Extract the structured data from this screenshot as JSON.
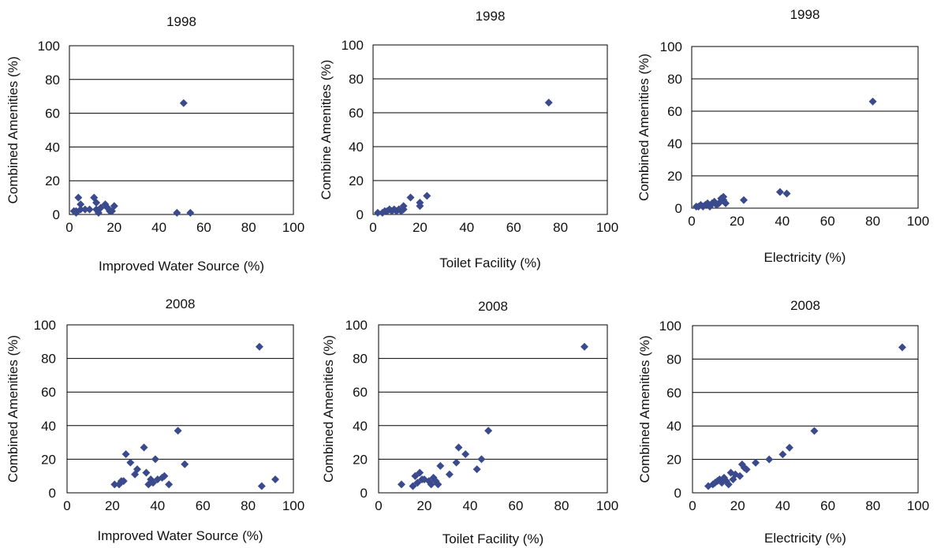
{
  "chart_data": [
    {
      "type": "scatter",
      "title": "1998",
      "xlabel": "Improved Water Source (%)",
      "ylabel": "Combined Amenities (%)",
      "xlim": [
        0,
        100
      ],
      "ylim": [
        0,
        100
      ],
      "xticks": [
        0,
        20,
        40,
        60,
        80,
        100
      ],
      "yticks": [
        0,
        20,
        40,
        60,
        80,
        100
      ],
      "grid": "horizontal",
      "marker_color": "#3a4a8c",
      "points": [
        {
          "x": 2,
          "y": 2
        },
        {
          "x": 3,
          "y": 2
        },
        {
          "x": 3,
          "y": 1
        },
        {
          "x": 4,
          "y": 10
        },
        {
          "x": 5,
          "y": 6
        },
        {
          "x": 5,
          "y": 3
        },
        {
          "x": 7,
          "y": 3
        },
        {
          "x": 9,
          "y": 3
        },
        {
          "x": 11,
          "y": 10
        },
        {
          "x": 12,
          "y": 7
        },
        {
          "x": 12,
          "y": 3
        },
        {
          "x": 13,
          "y": 1
        },
        {
          "x": 14,
          "y": 4
        },
        {
          "x": 16,
          "y": 6
        },
        {
          "x": 17,
          "y": 4
        },
        {
          "x": 18,
          "y": 2
        },
        {
          "x": 19,
          "y": 2
        },
        {
          "x": 20,
          "y": 5
        },
        {
          "x": 48,
          "y": 1
        },
        {
          "x": 51,
          "y": 66
        },
        {
          "x": 54,
          "y": 1
        }
      ]
    },
    {
      "type": "scatter",
      "title": "1998",
      "xlabel": "Toilet Facility (%)",
      "ylabel": "Combine Amenities (%)",
      "xlim": [
        0,
        100
      ],
      "ylim": [
        0,
        100
      ],
      "xticks": [
        0,
        20,
        40,
        60,
        80,
        100
      ],
      "yticks": [
        0,
        20,
        40,
        60,
        80,
        100
      ],
      "grid": "horizontal",
      "marker_color": "#3a4a8c",
      "points": [
        {
          "x": 2,
          "y": 1
        },
        {
          "x": 4,
          "y": 1
        },
        {
          "x": 5,
          "y": 2
        },
        {
          "x": 6,
          "y": 2
        },
        {
          "x": 7,
          "y": 3
        },
        {
          "x": 8,
          "y": 2
        },
        {
          "x": 9,
          "y": 3
        },
        {
          "x": 10,
          "y": 2
        },
        {
          "x": 11,
          "y": 3
        },
        {
          "x": 12,
          "y": 2
        },
        {
          "x": 13,
          "y": 3
        },
        {
          "x": 13,
          "y": 5
        },
        {
          "x": 16,
          "y": 10
        },
        {
          "x": 20,
          "y": 7
        },
        {
          "x": 20,
          "y": 5
        },
        {
          "x": 23,
          "y": 11
        },
        {
          "x": 75,
          "y": 66
        }
      ]
    },
    {
      "type": "scatter",
      "title": "1998",
      "xlabel": "Electricity (%)",
      "ylabel": "Combined Amenities (%)",
      "xlim": [
        0,
        100
      ],
      "ylim": [
        0,
        100
      ],
      "xticks": [
        0,
        20,
        40,
        60,
        80,
        100
      ],
      "yticks": [
        0,
        20,
        40,
        60,
        80,
        100
      ],
      "grid": "horizontal",
      "marker_color": "#3a4a8c",
      "points": [
        {
          "x": 2,
          "y": 1
        },
        {
          "x": 3,
          "y": 1
        },
        {
          "x": 4,
          "y": 2
        },
        {
          "x": 5,
          "y": 1
        },
        {
          "x": 6,
          "y": 2
        },
        {
          "x": 7,
          "y": 3
        },
        {
          "x": 8,
          "y": 1
        },
        {
          "x": 9,
          "y": 3
        },
        {
          "x": 10,
          "y": 4
        },
        {
          "x": 11,
          "y": 2
        },
        {
          "x": 12,
          "y": 3
        },
        {
          "x": 13,
          "y": 6
        },
        {
          "x": 14,
          "y": 5
        },
        {
          "x": 14,
          "y": 7
        },
        {
          "x": 15,
          "y": 3
        },
        {
          "x": 23,
          "y": 5
        },
        {
          "x": 39,
          "y": 10
        },
        {
          "x": 42,
          "y": 9
        },
        {
          "x": 80,
          "y": 66
        }
      ]
    },
    {
      "type": "scatter",
      "title": "2008",
      "xlabel": "Improved Water Source (%)",
      "ylabel": "Combined Amenities (%)",
      "xlim": [
        0,
        100
      ],
      "ylim": [
        0,
        100
      ],
      "xticks": [
        0,
        20,
        40,
        60,
        80,
        100
      ],
      "yticks": [
        0,
        20,
        40,
        60,
        80,
        100
      ],
      "grid": "horizontal",
      "marker_color": "#3a4a8c",
      "points": [
        {
          "x": 21,
          "y": 5
        },
        {
          "x": 23,
          "y": 5
        },
        {
          "x": 24,
          "y": 7
        },
        {
          "x": 25,
          "y": 7
        },
        {
          "x": 26,
          "y": 23
        },
        {
          "x": 28,
          "y": 18
        },
        {
          "x": 30,
          "y": 11
        },
        {
          "x": 31,
          "y": 14
        },
        {
          "x": 34,
          "y": 27
        },
        {
          "x": 35,
          "y": 12
        },
        {
          "x": 36,
          "y": 5
        },
        {
          "x": 37,
          "y": 8
        },
        {
          "x": 38,
          "y": 6
        },
        {
          "x": 39,
          "y": 20
        },
        {
          "x": 40,
          "y": 8
        },
        {
          "x": 42,
          "y": 9
        },
        {
          "x": 43,
          "y": 10
        },
        {
          "x": 45,
          "y": 5
        },
        {
          "x": 49,
          "y": 37
        },
        {
          "x": 52,
          "y": 17
        },
        {
          "x": 85,
          "y": 87
        },
        {
          "x": 86,
          "y": 4
        },
        {
          "x": 92,
          "y": 8
        }
      ]
    },
    {
      "type": "scatter",
      "title": "2008",
      "xlabel": "Toilet Facility (%)",
      "ylabel": "Combined Amenities (%)",
      "xlim": [
        0,
        100
      ],
      "ylim": [
        0,
        100
      ],
      "xticks": [
        0,
        20,
        40,
        60,
        80,
        100
      ],
      "yticks": [
        0,
        20,
        40,
        60,
        80,
        100
      ],
      "grid": "horizontal",
      "marker_color": "#3a4a8c",
      "points": [
        {
          "x": 10,
          "y": 5
        },
        {
          "x": 15,
          "y": 4
        },
        {
          "x": 16,
          "y": 10
        },
        {
          "x": 17,
          "y": 6
        },
        {
          "x": 18,
          "y": 12
        },
        {
          "x": 19,
          "y": 8
        },
        {
          "x": 20,
          "y": 8
        },
        {
          "x": 22,
          "y": 7
        },
        {
          "x": 23,
          "y": 5
        },
        {
          "x": 24,
          "y": 9
        },
        {
          "x": 25,
          "y": 7
        },
        {
          "x": 26,
          "y": 5
        },
        {
          "x": 27,
          "y": 16
        },
        {
          "x": 31,
          "y": 11
        },
        {
          "x": 34,
          "y": 18
        },
        {
          "x": 35,
          "y": 27
        },
        {
          "x": 38,
          "y": 23
        },
        {
          "x": 43,
          "y": 14
        },
        {
          "x": 45,
          "y": 20
        },
        {
          "x": 48,
          "y": 37
        },
        {
          "x": 90,
          "y": 87
        }
      ]
    },
    {
      "type": "scatter",
      "title": "2008",
      "xlabel": "Electricity (%)",
      "ylabel": "Combined Amenities (%)",
      "xlim": [
        0,
        100
      ],
      "ylim": [
        0,
        100
      ],
      "xticks": [
        0,
        20,
        40,
        60,
        80,
        100
      ],
      "yticks": [
        0,
        20,
        40,
        60,
        80,
        100
      ],
      "grid": "horizontal",
      "marker_color": "#3a4a8c",
      "points": [
        {
          "x": 7,
          "y": 4
        },
        {
          "x": 9,
          "y": 5
        },
        {
          "x": 10,
          "y": 6
        },
        {
          "x": 11,
          "y": 7
        },
        {
          "x": 12,
          "y": 8
        },
        {
          "x": 13,
          "y": 6
        },
        {
          "x": 14,
          "y": 9
        },
        {
          "x": 15,
          "y": 7
        },
        {
          "x": 16,
          "y": 5
        },
        {
          "x": 17,
          "y": 12
        },
        {
          "x": 18,
          "y": 8
        },
        {
          "x": 19,
          "y": 11
        },
        {
          "x": 21,
          "y": 10
        },
        {
          "x": 22,
          "y": 17
        },
        {
          "x": 23,
          "y": 15
        },
        {
          "x": 24,
          "y": 14
        },
        {
          "x": 28,
          "y": 18
        },
        {
          "x": 34,
          "y": 20
        },
        {
          "x": 40,
          "y": 23
        },
        {
          "x": 43,
          "y": 27
        },
        {
          "x": 54,
          "y": 37
        },
        {
          "x": 93,
          "y": 87
        }
      ]
    }
  ]
}
